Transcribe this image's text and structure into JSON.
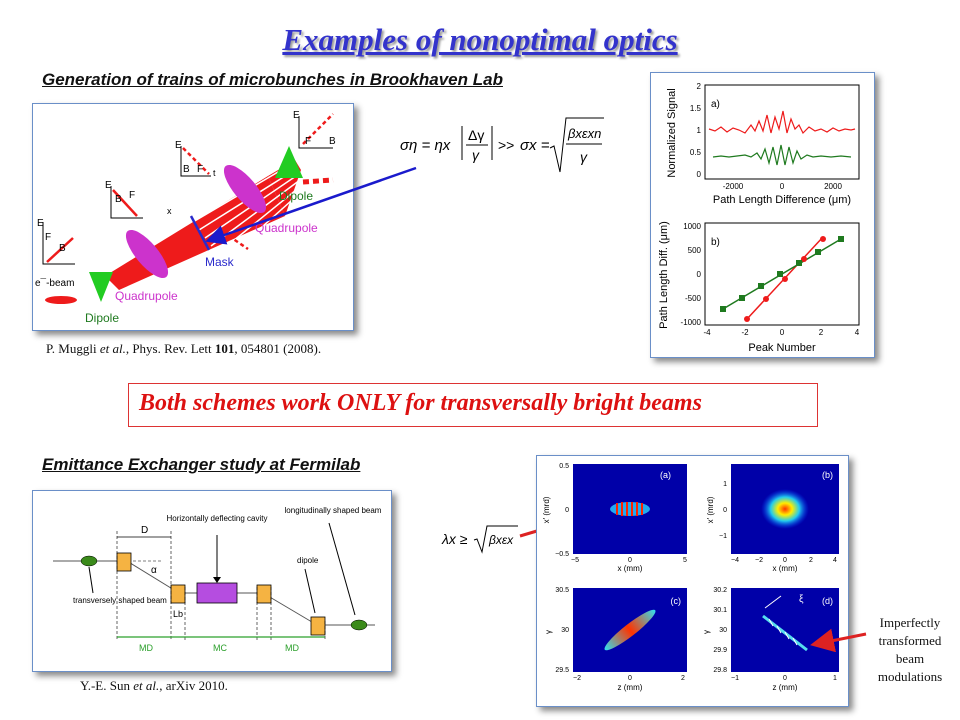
{
  "title": "Examples of nonoptimal optics",
  "section1": {
    "heading": "Generation of trains of microbunches in Brookhaven Lab",
    "citation": {
      "authors": "P. Muggli",
      "etal": "et al.",
      "journal": ", Phys. Rev. Lett ",
      "volume": "101",
      "rest": ", 054801 (2008)."
    },
    "diagram_labels": {
      "e_beam": "e¯-beam",
      "dipole_left": "Dipole",
      "quadrupole_left": "Quadrupole",
      "mask": "Mask",
      "quadrupole_right": "Quadrupole",
      "dipole_right": "Dipole",
      "axis_e": "E",
      "axis_x": "x",
      "axis_t": "t",
      "b": "B",
      "f": "F"
    },
    "formula": {
      "sigma_eta": "ση = ηx",
      "frac_top": "Δγ",
      "frac_bottom": "γ",
      "gg": ">>",
      "sigma_x": "σx =",
      "root_top": "βxεxn",
      "root_bottom": "γ"
    },
    "plots": {
      "a_label": "a)",
      "b_label": "b)",
      "a_ylabel": "Normalized Signal",
      "a_xlabel": "Path Length Difference (μm)",
      "b_ylabel": "Path Length Diff. (μm)",
      "b_xlabel": "Peak Number",
      "a_yticks": [
        "2",
        "1.5",
        "1",
        "0.5",
        "0"
      ],
      "a_xticks": [
        "-2000",
        "0",
        "2000"
      ],
      "b_yticks": [
        "1000",
        "500",
        "0",
        "-500",
        "-1000"
      ],
      "b_xticks": [
        "-4",
        "-2",
        "0",
        "2",
        "4"
      ]
    }
  },
  "banner": "Both schemes work ONLY for transversally bright beams",
  "section2": {
    "heading": "Emittance Exchanger study at Fermilab",
    "citation": {
      "authors": "Y.-E. Sun",
      "etal": "et al.",
      "rest": ", arXiv 2010."
    },
    "diagram_labels": {
      "horiz_cavity": "Horizontally deflecting cavity",
      "long_beam": "longitudinally shaped beam",
      "dipole": "dipole",
      "trans_beam": "transversely shaped beam",
      "d": "D",
      "alpha": "α",
      "lb": "Lb",
      "md": "MD",
      "mc": "MC",
      "md2": "MD"
    },
    "formula": {
      "lhs": "λx ≥",
      "root": "βxεx"
    },
    "plots": {
      "a": "(a)",
      "b": "(b)",
      "c": "(c)",
      "d": "(d)",
      "ylabel_top": "x' (mrd)",
      "ylabel_bottom": "γ",
      "xlabel_top": "x (mm)",
      "xlabel_bottom": "z (mm)",
      "a_yticks": [
        "0.5",
        "0",
        "−0.5"
      ],
      "a_xticks": [
        "−5",
        "0",
        "5"
      ],
      "b_yticks": [
        "1",
        "0",
        "−1"
      ],
      "b_xticks": [
        "−4",
        "−2",
        "0",
        "2",
        "4"
      ],
      "c_yticks": [
        "30.5",
        "30",
        "29.5"
      ],
      "c_xticks": [
        "−2",
        "0",
        "2"
      ],
      "d_yticks": [
        "30.2",
        "30.1",
        "30",
        "29.9",
        "29.8"
      ],
      "d_xticks": [
        "−1",
        "0",
        "1"
      ],
      "xi": "ξ"
    },
    "note": [
      "Imperfectly",
      "transformed",
      "beam",
      "modulations"
    ]
  },
  "colors": {
    "title": "#3333cc",
    "banner": "#dd1111",
    "arrow_blue": "#1a1acc",
    "arrow_red": "#dd2222"
  }
}
